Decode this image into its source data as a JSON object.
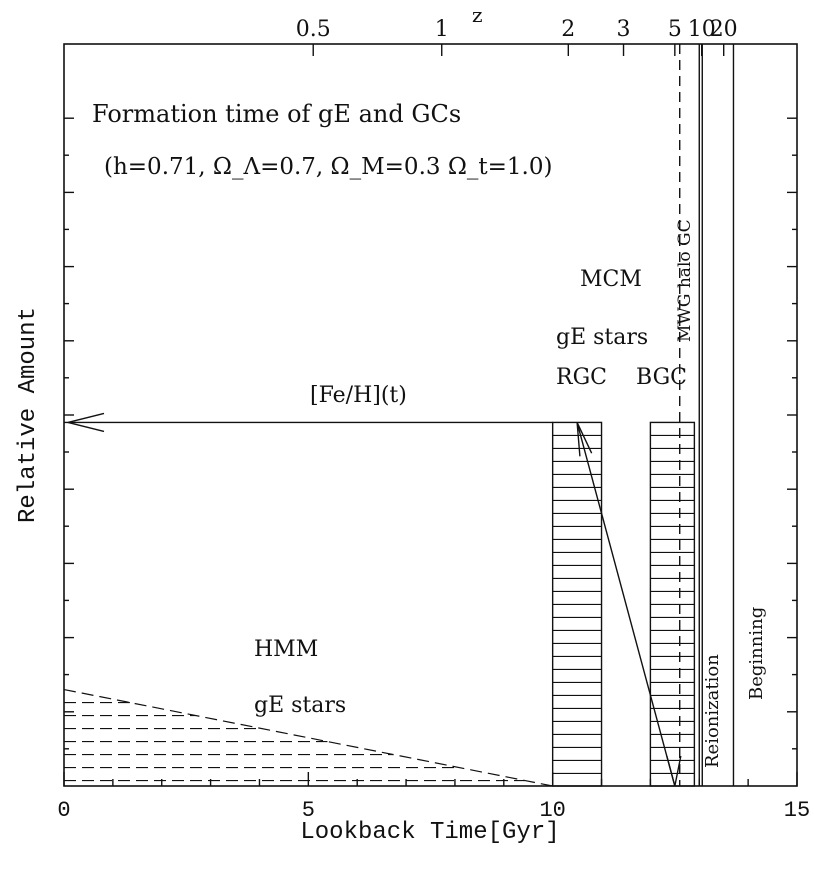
{
  "chart_data": {
    "type": "diagram-chart",
    "title_lines": [
      "Formation time of gE and GCs",
      "(h=0.71, Ω_Λ=0.7, Ω_M=0.3 Ω_t=1.0)"
    ],
    "xlabel": "Lookback Time[Gyr]",
    "ylabel": "Relative Amount",
    "top_axis_label": "z",
    "xlim": [
      0,
      15
    ],
    "x_ticks": [
      0,
      5,
      10,
      15
    ],
    "x_minor_step": 1,
    "y_tick_count": 10,
    "top_ticks": [
      {
        "label": "0.5",
        "t": 5.1
      },
      {
        "label": "1",
        "t": 7.73
      },
      {
        "label": "2",
        "t": 10.32
      },
      {
        "label": "3",
        "t": 11.45
      },
      {
        "label": "5",
        "t": 12.5
      },
      {
        "label": "10",
        "t": 13.05
      },
      {
        "label": "20",
        "t": 13.5
      }
    ],
    "rgc_block": {
      "t_start": 10.0,
      "t_end": 11.0,
      "top": 0.49
    },
    "bgc_block": {
      "t_start": 12.0,
      "t_end": 12.9,
      "top": 0.49
    },
    "mwg_halo_gc_line_t": 12.6,
    "reionization_line_t": 13.0,
    "beginning_line_t": 13.7,
    "hmm_wedge": {
      "t_end": 10.0,
      "top": 0.13
    },
    "feh_arrow": {
      "label": "[Fe/H](t)",
      "from_t": 10.0,
      "to_t": 0.0,
      "level": 0.49
    },
    "diagonal_arrow": {
      "from_t": 12.5,
      "from_y": 0.0,
      "to_t": 10.5,
      "to_y": 0.49
    },
    "annotations": {
      "mcm": "MCM",
      "mcm_stars": "gE stars",
      "rgc": "RGC",
      "bgc": "BGC",
      "mwg": "MWG halo GC",
      "hmm": "HMM",
      "hmm_stars": "gE stars",
      "reionization": "Reionization",
      "beginning": "Beginning"
    }
  }
}
